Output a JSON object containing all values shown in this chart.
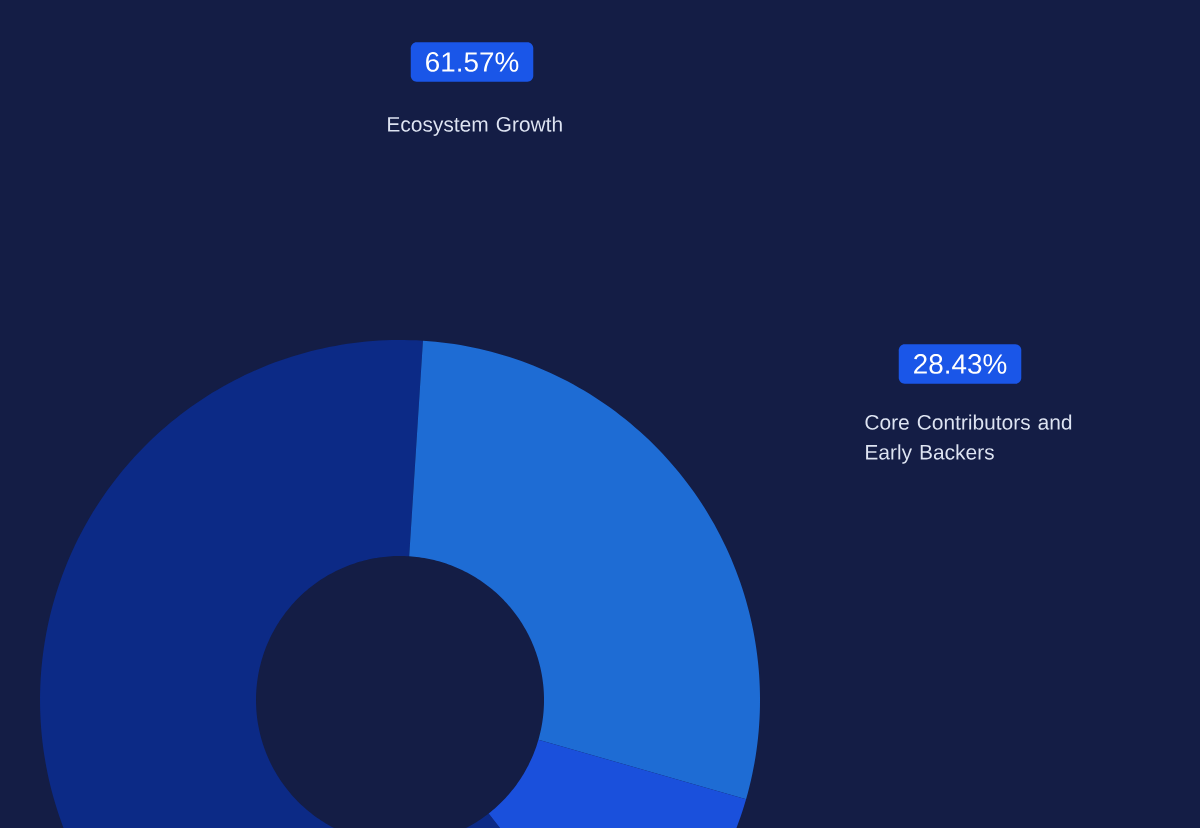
{
  "chart_data": {
    "type": "donut",
    "categories": [
      "Ecosystem Growth",
      "Core Contributors and Early Backers",
      null
    ],
    "values": [
      61.57,
      28.43,
      10
    ],
    "colors": [
      "#0c2a86",
      "#1e6cd4",
      "#1a50dc"
    ],
    "value_labels": [
      "61.57%",
      "28.43%",
      null
    ]
  }
}
